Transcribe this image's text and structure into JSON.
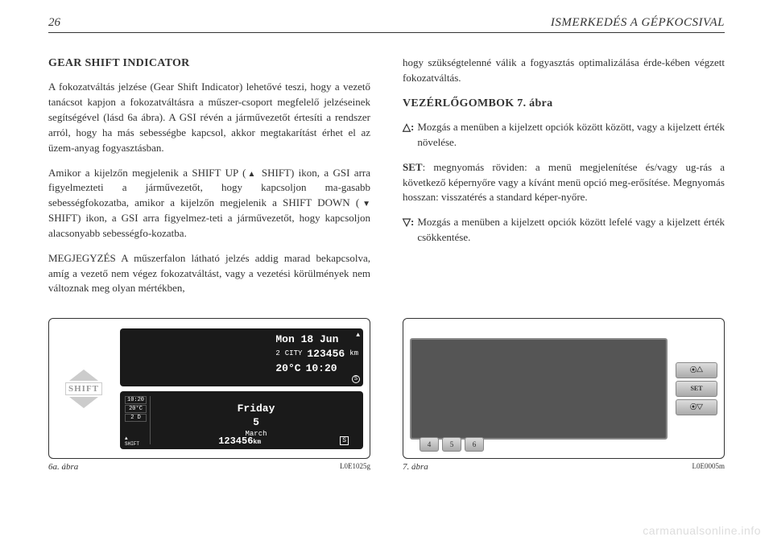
{
  "header": {
    "page_number": "26",
    "section_title": "ISMERKEDÉS A GÉPKOCSIVAL"
  },
  "left_column": {
    "heading": "GEAR SHIFT INDICATOR",
    "para1": "A fokozatváltás jelzése (Gear Shift Indicator) lehetővé teszi, hogy a vezető tanácsot kapjon a fokozatváltásra a műszer-csoport megfelelő jelzéseinek segítségével (lásd 6a ábra). A GSI révén a járművezetőt értesíti a rendszer arról, hogy ha más sebességbe kapcsol, akkor megtakarítást érhet el az üzem-anyag fogyasztásban.",
    "para2_pre": "Amikor a kijelzőn megjelenik a SHIFT UP (",
    "para2_mid1": " SHIFT) ikon, a GSI arra figyelmezteti a járművezetőt, hogy kapcsoljon ma-gasabb sebességfokozatba, amikor a kijelzőn megjelenik a SHIFT DOWN (",
    "para2_mid2": " SHIFT) ikon, a GSI arra figyelmez-teti a járművezetőt, hogy kapcsoljon alacsonyabb sebességfo-kozatba.",
    "para3": "MEGJEGYZÉS A műszerfalon látható jelzés addig marad bekapcsolva, amíg a vezető nem végez fokozatváltást, vagy a vezetési körülmények nem változnak meg olyan mértékben,"
  },
  "right_column": {
    "para_cont": "hogy szükségtelenné válik a fogyasztás optimalizálása érde-kében végzett fokozatváltás.",
    "heading": "VEZÉRLŐGOMBOK 7. ábra",
    "def1_symbol": "△:",
    "def1_text": "Mozgás a menüben a kijelzett opciók között között, vagy a kijelzett érték növelése.",
    "def2_symbol": "SET",
    "def2_text": ": megnyomás röviden: a menü megjelenítése és/vagy ug-rás a következő képernyőre vagy a kívánt menü opció meg-erősítése. Megnyomás hosszan: visszatérés a standard képer-nyőre.",
    "def3_symbol": "▽:",
    "def3_text": "Mozgás a menüben a kijelzett opciók között lefelé vagy a kijelzett érték csökkentése."
  },
  "figure_6a": {
    "shift_label": "SHIFT",
    "upper_display": {
      "date": "Mon 18 Jun",
      "gear": "2",
      "city": "CITY",
      "odometer": "123456",
      "unit": "km",
      "temp": "20°C",
      "time": "10:20",
      "s_icon": "S"
    },
    "lower_display": {
      "time": "10:20",
      "temp": "20°C",
      "gear": "2",
      "d_icon": "D",
      "day": "Friday",
      "date_num": "5",
      "month": "March",
      "shift_label": "SHIFT",
      "odometer": "123456",
      "unit": "km",
      "s_icon": "S"
    },
    "caption": "6a. ábra",
    "code": "L0E1025g"
  },
  "figure_7": {
    "buttons": {
      "up": "⦿△",
      "set": "SET",
      "down": "⦿▽"
    },
    "numbers": [
      "4",
      "5",
      "6"
    ],
    "caption": "7. ábra",
    "code": "L0E0005m"
  },
  "watermark": "carmanualsonline.info"
}
